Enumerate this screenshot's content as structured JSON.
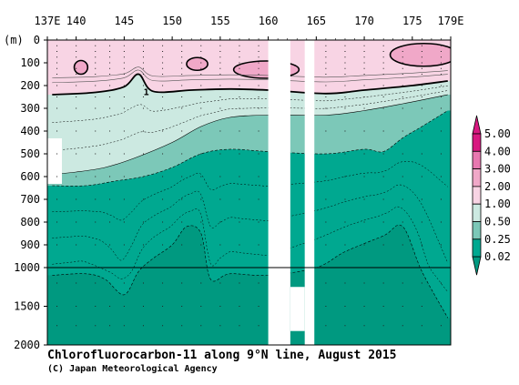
{
  "chart_data": {
    "type": "heatmap",
    "title": "Chlorofluorocarbon-11 along 9°N line, August 2015",
    "credit": "(C) Japan Meteorological Agency",
    "y_unit": "(m)",
    "x_range": [
      137,
      179
    ],
    "x_ticks": [
      {
        "value": 137,
        "label": "137E"
      },
      {
        "value": 140,
        "label": "140"
      },
      {
        "value": 145,
        "label": "145"
      },
      {
        "value": 150,
        "label": "150"
      },
      {
        "value": 155,
        "label": "155"
      },
      {
        "value": 160,
        "label": "160"
      },
      {
        "value": 165,
        "label": "165"
      },
      {
        "value": 170,
        "label": "170"
      },
      {
        "value": 175,
        "label": "175"
      },
      {
        "value": 179,
        "label": "179E"
      }
    ],
    "y_ticks": [
      {
        "value": 0,
        "label": "0"
      },
      {
        "value": 100,
        "label": "100"
      },
      {
        "value": 200,
        "label": "200"
      },
      {
        "value": 300,
        "label": "300"
      },
      {
        "value": 400,
        "label": "400"
      },
      {
        "value": 500,
        "label": "500"
      },
      {
        "value": 600,
        "label": "600"
      },
      {
        "value": 700,
        "label": "700"
      },
      {
        "value": 800,
        "label": "800"
      },
      {
        "value": 900,
        "label": "900"
      },
      {
        "value": 1000,
        "label": "1000"
      },
      {
        "value": 1500,
        "label": "1500"
      },
      {
        "value": 2000,
        "label": "2000"
      }
    ],
    "colorbar": {
      "levels": [
        {
          "label": "0.02",
          "color": "#009980"
        },
        {
          "label": "0.25",
          "color": "#00a890"
        },
        {
          "label": "0.50",
          "color": "#7cc8b8"
        },
        {
          "label": "1.00",
          "color": "#cce9e1"
        },
        {
          "label": "2.00",
          "color": "#f8d4e4"
        },
        {
          "label": "3.00",
          "color": "#f0a8c8"
        },
        {
          "label": "4.00",
          "color": "#e878b0"
        },
        {
          "label": "5.00",
          "color": "#d81880"
        }
      ],
      "below_color": "#009980",
      "above_color": "#d81880"
    },
    "contour_labels": [
      {
        "text": "1",
        "lon": 147.3,
        "depth": 230
      }
    ],
    "gaps": [
      {
        "lon_range": [
          160.0,
          162.3
        ],
        "depth_range": [
          0,
          2000
        ]
      },
      {
        "lon_range": [
          163.8,
          164.8
        ],
        "depth_range": [
          0,
          2000
        ]
      },
      {
        "lon_range": [
          162.3,
          163.8
        ],
        "depth_range": [
          1250,
          1820
        ]
      }
    ],
    "reference_line_depth": 1000,
    "contour_1_00_depth": [
      {
        "lon": 137.5,
        "depth": 240
      },
      {
        "lon": 142,
        "depth": 230
      },
      {
        "lon": 145,
        "depth": 205
      },
      {
        "lon": 146.5,
        "depth": 150
      },
      {
        "lon": 148,
        "depth": 225
      },
      {
        "lon": 152,
        "depth": 220
      },
      {
        "lon": 156,
        "depth": 215
      },
      {
        "lon": 160,
        "depth": 220
      },
      {
        "lon": 166,
        "depth": 235
      },
      {
        "lon": 170,
        "depth": 220
      },
      {
        "lon": 175,
        "depth": 200
      },
      {
        "lon": 178.7,
        "depth": 180
      }
    ],
    "contour_0_50_depth": [
      {
        "lon": 137.5,
        "depth": 590
      },
      {
        "lon": 140,
        "depth": 580
      },
      {
        "lon": 143,
        "depth": 560
      },
      {
        "lon": 146,
        "depth": 520
      },
      {
        "lon": 150,
        "depth": 450
      },
      {
        "lon": 153,
        "depth": 380
      },
      {
        "lon": 156,
        "depth": 340
      },
      {
        "lon": 160,
        "depth": 330
      },
      {
        "lon": 166,
        "depth": 330
      },
      {
        "lon": 170,
        "depth": 310
      },
      {
        "lon": 174,
        "depth": 280
      },
      {
        "lon": 178.7,
        "depth": 240
      }
    ],
    "contour_0_25_depth": [
      {
        "lon": 137.5,
        "depth": 640
      },
      {
        "lon": 141,
        "depth": 640
      },
      {
        "lon": 144,
        "depth": 620
      },
      {
        "lon": 147,
        "depth": 600
      },
      {
        "lon": 150,
        "depth": 560
      },
      {
        "lon": 153,
        "depth": 500
      },
      {
        "lon": 156,
        "depth": 480
      },
      {
        "lon": 160,
        "depth": 490
      },
      {
        "lon": 166,
        "depth": 500
      },
      {
        "lon": 170,
        "depth": 480
      },
      {
        "lon": 172,
        "depth": 490
      },
      {
        "lon": 174,
        "depth": 430
      },
      {
        "lon": 176,
        "depth": 380
      },
      {
        "lon": 178.7,
        "depth": 310
      }
    ],
    "contour_0_02_depth": [
      {
        "lon": 137.5,
        "depth": 1100
      },
      {
        "lon": 141,
        "depth": 1080
      },
      {
        "lon": 143,
        "depth": 1150
      },
      {
        "lon": 145,
        "depth": 1350
      },
      {
        "lon": 146.5,
        "depth": 1050
      },
      {
        "lon": 148,
        "depth": 960
      },
      {
        "lon": 150,
        "depth": 900
      },
      {
        "lon": 151.5,
        "depth": 820
      },
      {
        "lon": 153,
        "depth": 850
      },
      {
        "lon": 154,
        "depth": 1150
      },
      {
        "lon": 156,
        "depth": 1080
      },
      {
        "lon": 160,
        "depth": 1100
      },
      {
        "lon": 165,
        "depth": 1000
      },
      {
        "lon": 168,
        "depth": 930
      },
      {
        "lon": 172,
        "depth": 860
      },
      {
        "lon": 174,
        "depth": 820
      },
      {
        "lon": 176,
        "depth": 1050
      },
      {
        "lon": 178.7,
        "depth": 1650
      }
    ],
    "high_patches": [
      {
        "lon": 140.5,
        "depth": 120,
        "rlon": 0.7,
        "rdepth": 30
      },
      {
        "lon": 152.6,
        "depth": 105,
        "rlon": 1.1,
        "rdepth": 28
      },
      {
        "lon": 159.8,
        "depth": 130,
        "rlon": 3.4,
        "rdepth": 38
      },
      {
        "lon": 176.2,
        "depth": 65,
        "rlon": 3.5,
        "rdepth": 50
      }
    ]
  }
}
